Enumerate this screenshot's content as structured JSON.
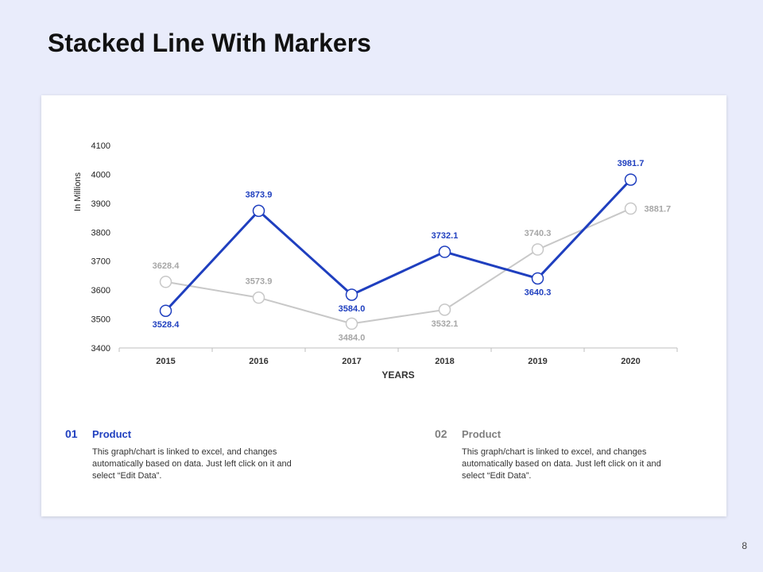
{
  "slide": {
    "title": "Stacked Line With Markers",
    "page_number": "8"
  },
  "colors": {
    "background": "#e9ecfb",
    "series_1": "#1f3fbf",
    "series_2": "#c8c8c8",
    "series_2_label": "#a6a6a6"
  },
  "chart_data": {
    "type": "line",
    "subtype": "line-with-markers",
    "title": "",
    "xlabel": "YEARS",
    "ylabel": "In Millions",
    "categories": [
      "2015",
      "2016",
      "2017",
      "2018",
      "2019",
      "2020"
    ],
    "ylim": [
      3400,
      4100
    ],
    "yticks": [
      3400,
      3500,
      3600,
      3700,
      3800,
      3900,
      4000,
      4100
    ],
    "grid": false,
    "legend": "none",
    "series": [
      {
        "values": [
          3528.4,
          3873.9,
          3584.0,
          3732.1,
          3640.3,
          3981.7
        ],
        "labels": [
          "3528.4",
          "3873.9",
          "3584.0",
          "3732.1",
          "3640.3",
          "3981.7"
        ],
        "color": "#1f3fbf"
      },
      {
        "values": [
          3628.4,
          3573.9,
          3484.0,
          3532.1,
          3740.3,
          3881.7
        ],
        "labels": [
          "3628.4",
          "3573.9",
          "3484.0",
          "3532.1",
          "3740.3",
          "3881.7"
        ],
        "color": "#c8c8c8"
      }
    ]
  },
  "info": [
    {
      "number": "01",
      "name": "Product",
      "description": "This graph/chart is linked to excel, and changes automatically based on data. Just left click on it and select “Edit Data”.",
      "color": "#1f3fbf"
    },
    {
      "number": "02",
      "name": "Product",
      "description": "This graph/chart is linked to excel, and changes automatically based on data. Just left click on it and select “Edit Data”.",
      "color": "#7f7f7f"
    }
  ]
}
